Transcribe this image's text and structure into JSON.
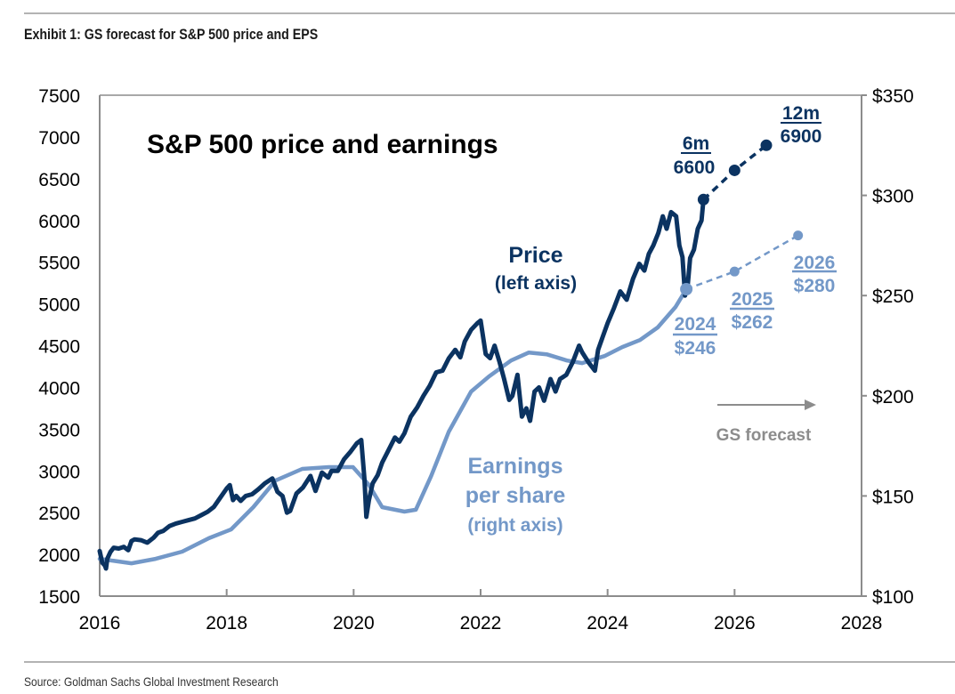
{
  "exhibit": {
    "title": "Exhibit 1: GS forecast for S&P 500 price and EPS",
    "source": "Source: Goldman Sachs Global Investment Research"
  },
  "colors": {
    "price": "#0b3361",
    "eps": "#7398c8",
    "forecast_note": "#8c8c8c",
    "axis": "#8c8c8c"
  },
  "chart_data": {
    "type": "line",
    "title": "S&P 500 price and earnings",
    "xlabel": "",
    "ylabel": "",
    "y2label": "",
    "xlim": [
      2016,
      2028
    ],
    "ylim": [
      1500,
      7500
    ],
    "y2lim": [
      100,
      350
    ],
    "grid": false,
    "x_ticks": [
      "2016",
      "2018",
      "2020",
      "2022",
      "2024",
      "2026",
      "2028"
    ],
    "x_tick_values": [
      2016,
      2018,
      2020,
      2022,
      2024,
      2026,
      2028
    ],
    "y_ticks": [
      "1500",
      "2000",
      "2500",
      "3000",
      "3500",
      "4000",
      "4500",
      "5000",
      "5500",
      "6000",
      "6500",
      "7000",
      "7500"
    ],
    "y_tick_values": [
      1500,
      2000,
      2500,
      3000,
      3500,
      4000,
      4500,
      5000,
      5500,
      6000,
      6500,
      7000,
      7500
    ],
    "y2_ticks": [
      "$100",
      "$150",
      "$200",
      "$250",
      "$300",
      "$350"
    ],
    "y2_tick_values": [
      100,
      150,
      200,
      250,
      300,
      350
    ],
    "series": [
      {
        "name": "Price",
        "label_line1": "Price",
        "label_line2": "(left axis)",
        "axis": "left",
        "x": [
          2016.0,
          2016.04,
          2016.08,
          2016.1,
          2016.12,
          2016.17,
          2016.22,
          2016.3,
          2016.38,
          2016.45,
          2016.5,
          2016.55,
          2016.65,
          2016.75,
          2016.85,
          2016.92,
          2017.0,
          2017.1,
          2017.2,
          2017.3,
          2017.4,
          2017.5,
          2017.6,
          2017.7,
          2017.8,
          2017.9,
          2018.0,
          2018.05,
          2018.1,
          2018.15,
          2018.22,
          2018.3,
          2018.4,
          2018.5,
          2018.6,
          2018.72,
          2018.8,
          2018.88,
          2018.95,
          2019.0,
          2019.1,
          2019.2,
          2019.32,
          2019.4,
          2019.5,
          2019.6,
          2019.65,
          2019.75,
          2019.85,
          2019.95,
          2020.05,
          2020.12,
          2020.17,
          2020.2,
          2020.24,
          2020.3,
          2020.38,
          2020.45,
          2020.55,
          2020.65,
          2020.72,
          2020.8,
          2020.9,
          2021.0,
          2021.1,
          2021.2,
          2021.3,
          2021.4,
          2021.5,
          2021.6,
          2021.68,
          2021.75,
          2021.85,
          2021.95,
          2022.0,
          2022.08,
          2022.15,
          2022.22,
          2022.3,
          2022.37,
          2022.45,
          2022.5,
          2022.58,
          2022.65,
          2022.72,
          2022.78,
          2022.85,
          2022.92,
          2023.0,
          2023.1,
          2023.18,
          2023.25,
          2023.35,
          2023.45,
          2023.55,
          2023.6,
          2023.7,
          2023.8,
          2023.85,
          2023.92,
          2024.0,
          2024.1,
          2024.2,
          2024.3,
          2024.4,
          2024.5,
          2024.58,
          2024.65,
          2024.72,
          2024.8,
          2024.87,
          2024.93,
          2025.0,
          2025.08,
          2025.13,
          2025.18,
          2025.22,
          2025.26,
          2025.3,
          2025.36,
          2025.42,
          2025.48,
          2025.51
        ],
        "values": [
          2040,
          1900,
          1870,
          1830,
          1950,
          2030,
          2080,
          2070,
          2090,
          2050,
          2160,
          2180,
          2170,
          2140,
          2200,
          2260,
          2280,
          2340,
          2370,
          2390,
          2410,
          2430,
          2470,
          2510,
          2570,
          2680,
          2790,
          2830,
          2650,
          2700,
          2640,
          2700,
          2720,
          2780,
          2850,
          2910,
          2750,
          2700,
          2500,
          2520,
          2730,
          2800,
          2940,
          2760,
          2980,
          2920,
          3000,
          3000,
          3140,
          3230,
          3330,
          3370,
          2900,
          2450,
          2650,
          2850,
          2950,
          3100,
          3250,
          3400,
          3350,
          3450,
          3650,
          3760,
          3900,
          4020,
          4180,
          4200,
          4350,
          4450,
          4360,
          4550,
          4690,
          4770,
          4800,
          4400,
          4350,
          4500,
          4300,
          4100,
          3850,
          3900,
          4150,
          3650,
          3750,
          3600,
          3950,
          4000,
          3840,
          4100,
          3950,
          4100,
          4150,
          4300,
          4500,
          4420,
          4300,
          4200,
          4450,
          4600,
          4770,
          4950,
          5150,
          5050,
          5300,
          5480,
          5400,
          5600,
          5700,
          5850,
          6050,
          5900,
          6100,
          6050,
          5700,
          5560,
          5100,
          5200,
          5550,
          5650,
          5900,
          6000,
          6250
        ],
        "forecast": {
          "x": [
            2025.51,
            2026.0,
            2026.5
          ],
          "values": [
            6250,
            6600,
            6900
          ],
          "labels": [
            {
              "horizon": "6m",
              "value": "6600"
            },
            {
              "horizon": "12m",
              "value": "6900"
            }
          ]
        }
      },
      {
        "name": "Earnings per share",
        "label_line1": "Earnings",
        "label_line2": "per share",
        "label_line3": "(right axis)",
        "axis": "right",
        "x": [
          2016.0,
          2016.5,
          2016.88,
          2017.3,
          2017.72,
          2018.07,
          2018.42,
          2018.77,
          2019.19,
          2019.61,
          2019.99,
          2020.24,
          2020.45,
          2020.8,
          2020.98,
          2021.22,
          2021.5,
          2021.85,
          2022.13,
          2022.48,
          2022.76,
          2023.04,
          2023.36,
          2023.6,
          2023.95,
          2024.23,
          2024.51,
          2024.79,
          2025.07,
          2025.24
        ],
        "values": [
          118.6,
          116.4,
          118.6,
          122.2,
          128.9,
          133.3,
          144.4,
          157.7,
          163.5,
          164.4,
          164.4,
          155.5,
          144.4,
          142.2,
          143.1,
          159.9,
          182.1,
          202.1,
          209.6,
          217.6,
          221.6,
          220.7,
          217.6,
          216.3,
          219.8,
          224.3,
          227.8,
          234.1,
          244.3,
          253.2
        ],
        "forecast": {
          "x": [
            2025.24,
            2026.0,
            2027.0
          ],
          "values": [
            253.2,
            262,
            280
          ],
          "labels": [
            {
              "year": "2024",
              "value": "$246"
            },
            {
              "year": "2025",
              "value": "$262"
            },
            {
              "year": "2026",
              "value": "$280"
            }
          ]
        }
      }
    ],
    "annotations": {
      "forecast_note": "GS forecast"
    }
  }
}
